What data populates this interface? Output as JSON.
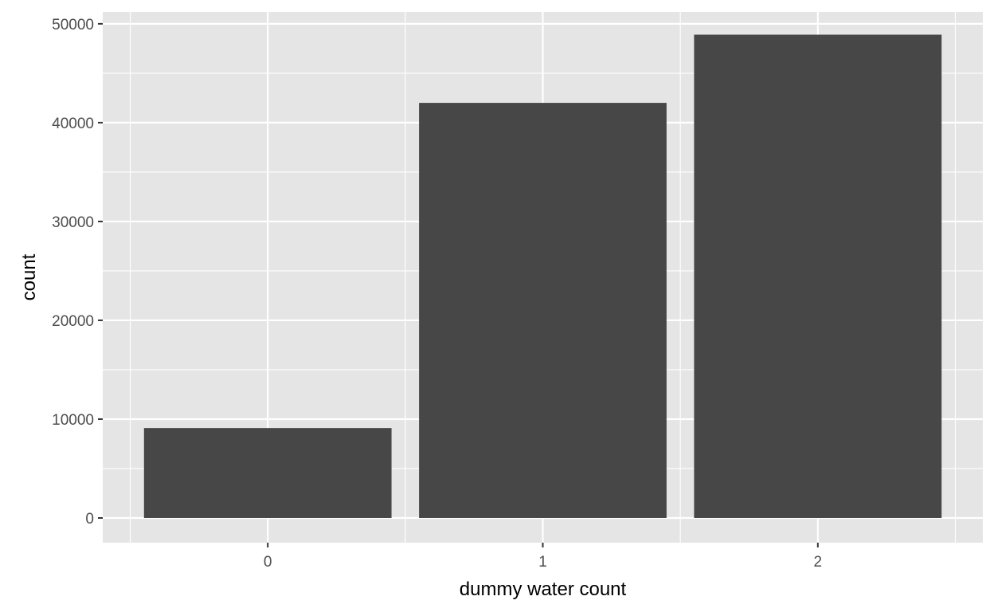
{
  "chart_data": {
    "type": "bar",
    "categories": [
      "0",
      "1",
      "2"
    ],
    "values": [
      9100,
      42000,
      48900
    ],
    "xlabel": "dummy water count",
    "ylabel": "count",
    "ylim": [
      -2500,
      51200
    ],
    "yticks": [
      0,
      10000,
      20000,
      30000,
      40000,
      50000
    ],
    "ytick_labels": [
      "0",
      "10000",
      "20000",
      "30000",
      "40000",
      "50000"
    ],
    "grid": true,
    "legend": "none"
  },
  "colors": {
    "panel_background": "#e5e5e5",
    "grid_major": "#ffffff",
    "bar_fill": "#474747",
    "tick_text": "#4d4d4d",
    "axis_title": "#000000"
  }
}
